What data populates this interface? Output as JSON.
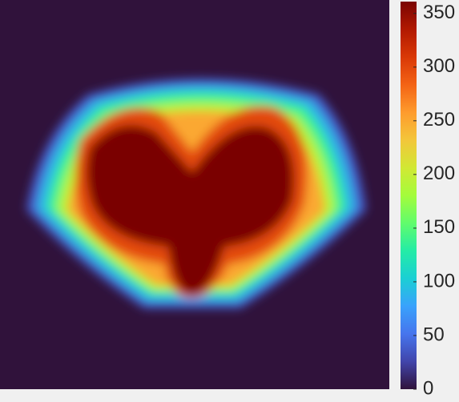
{
  "chart_data": {
    "type": "heatmap",
    "background": "#30123b",
    "colormap": [
      "#30123b",
      "#4145ab",
      "#4675ed",
      "#39a2fc",
      "#1bcfd4",
      "#24eca6",
      "#61fc6c",
      "#a4fc3b",
      "#d1e834",
      "#f3c63a",
      "#fe9b2d",
      "#f36315",
      "#d93806",
      "#b11901",
      "#7a0402"
    ],
    "clim": [
      0,
      361
    ],
    "cticks": [
      0,
      50,
      100,
      150,
      200,
      250,
      300,
      350
    ],
    "levels": [
      40,
      90,
      140,
      190,
      250,
      300,
      361
    ]
  }
}
